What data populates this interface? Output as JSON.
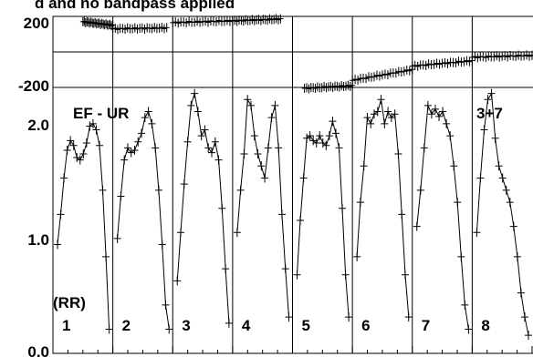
{
  "chart_data": {
    "type": "line",
    "title": "d and no bandpass applied",
    "phase_panel": {
      "ylim": [
        -200,
        200
      ],
      "ytick_labels": [
        "200",
        "-200"
      ],
      "segments": [
        {
          "x": [
            0.5,
            1.0
          ],
          "y": [
            170,
            150
          ]
        },
        {
          "x": [
            1.0,
            1.9
          ],
          "y": [
            130,
            135
          ]
        },
        {
          "x": [
            2.0,
            3.0
          ],
          "y": [
            165,
            175
          ]
        },
        {
          "x": [
            3.0,
            3.8
          ],
          "y": [
            175,
            185
          ]
        },
        {
          "x": [
            4.2,
            5.0
          ],
          "y": [
            -205,
            -190
          ]
        },
        {
          "x": [
            5.0,
            6.0
          ],
          "y": [
            -160,
            -100
          ]
        },
        {
          "x": [
            6.0,
            7.0
          ],
          "y": [
            -80,
            -50
          ]
        },
        {
          "x": [
            7.0,
            8.0
          ],
          "y": [
            -30,
            -20
          ]
        },
        {
          "x": [
            8.0,
            9.0
          ],
          "y": [
            -20,
            -25
          ]
        }
      ]
    },
    "amp_panel": {
      "label": "EF - UR",
      "polarization": "(RR)",
      "corner_label": "3+7",
      "ylim": [
        0,
        2.2
      ],
      "ytick_labels": [
        "2.0",
        "1.0",
        "0.0"
      ],
      "spectra": [
        {
          "label": "1",
          "values": [
            0.9,
            1.15,
            1.45,
            1.68,
            1.76,
            1.72,
            1.62,
            1.6,
            1.65,
            1.74,
            1.88,
            1.9,
            1.85,
            1.72,
            1.35,
            0.8,
            0.2
          ]
        },
        {
          "label": "2",
          "values": [
            0.95,
            1.3,
            1.6,
            1.7,
            1.66,
            1.68,
            1.75,
            1.82,
            1.95,
            2.0,
            1.9,
            1.7,
            1.35,
            0.9,
            0.4,
            0.2
          ]
        },
        {
          "label": "3",
          "values": [
            0.6,
            1.0,
            1.4,
            1.75,
            2.05,
            2.15,
            2.0,
            1.8,
            1.85,
            1.7,
            1.66,
            1.75,
            1.6,
            1.2,
            0.7,
            0.25
          ]
        },
        {
          "label": "4",
          "values": [
            1.0,
            1.35,
            1.65,
            2.1,
            2.05,
            1.8,
            1.65,
            1.55,
            1.45,
            1.7,
            1.95,
            2.05,
            1.7,
            1.15,
            0.7,
            0.3
          ]
        },
        {
          "label": "5",
          "values": [
            0.65,
            1.1,
            1.45,
            1.78,
            1.8,
            1.76,
            1.74,
            1.8,
            1.74,
            1.72,
            1.8,
            1.92,
            1.82,
            1.7,
            1.2,
            0.65,
            0.3
          ]
        },
        {
          "label": "6",
          "values": [
            0.8,
            1.25,
            1.55,
            1.95,
            1.9,
            1.98,
            2.0,
            2.1,
            1.9,
            2.0,
            1.95,
            1.98,
            1.65,
            1.15,
            0.65,
            0.3
          ]
        },
        {
          "label": "7",
          "values": [
            1.05,
            1.35,
            1.7,
            2.05,
            1.98,
            2.02,
            1.96,
            2.0,
            1.9,
            1.8,
            1.55,
            1.25,
            0.8,
            0.4,
            0.2
          ]
        },
        {
          "label": "8",
          "values": [
            1.0,
            1.45,
            1.85,
            2.1,
            2.15,
            1.78,
            1.55,
            1.45,
            1.35,
            1.25,
            1.05,
            0.8,
            0.5,
            0.3,
            0.15
          ]
        }
      ]
    }
  }
}
